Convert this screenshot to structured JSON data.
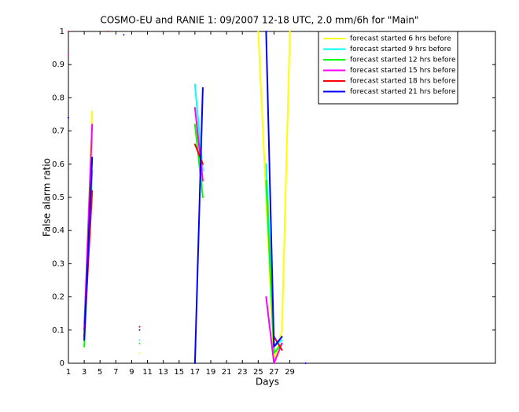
{
  "chart_data": {
    "type": "line",
    "title": "COSMO-EU and RANIE 1: 09/2007 12-18 UTC, 2.0 mm/6h for \"Main\"",
    "x_label": "Days",
    "y_label": "False alarm ratio",
    "x": [
      1,
      2,
      3,
      4,
      5,
      6,
      7,
      8,
      9,
      10,
      11,
      12,
      13,
      14,
      15,
      16,
      17,
      18,
      19,
      20,
      21,
      22,
      23,
      24,
      25,
      26,
      27,
      28,
      29,
      30,
      31
    ],
    "xlim": [
      1,
      55
    ],
    "xticks": [
      1,
      3,
      5,
      7,
      9,
      11,
      13,
      15,
      17,
      19,
      21,
      23,
      25,
      27,
      29
    ],
    "ylim": [
      0,
      1
    ],
    "yticks": [
      0,
      0.1,
      0.2,
      0.3,
      0.4,
      0.5,
      0.6,
      0.7,
      0.8,
      0.9,
      1
    ],
    "legend": "upper right",
    "series": [
      {
        "name": "forecast started 6 hrs before",
        "color": "#ffff00",
        "values": [
          null,
          null,
          0.08,
          0.76,
          null,
          null,
          null,
          null,
          null,
          0.03,
          null,
          null,
          null,
          null,
          null,
          null,
          0.72,
          0.6,
          null,
          null,
          null,
          null,
          null,
          null,
          1.0,
          0.5,
          0.0,
          0.1,
          1.0,
          null,
          null
        ]
      },
      {
        "name": "forecast started 9 hrs before",
        "color": "#00ffff",
        "values": [
          null,
          null,
          0.12,
          0.62,
          null,
          null,
          null,
          null,
          null,
          0.07,
          null,
          null,
          null,
          null,
          null,
          null,
          0.84,
          0.58,
          null,
          null,
          null,
          null,
          null,
          null,
          null,
          0.6,
          0.05,
          0.07,
          null,
          null,
          null
        ]
      },
      {
        "name": "forecast started 12 hrs before",
        "color": "#00ff00",
        "values": [
          null,
          null,
          0.05,
          0.58,
          null,
          null,
          null,
          null,
          null,
          0.06,
          null,
          null,
          null,
          null,
          null,
          null,
          0.72,
          0.5,
          null,
          null,
          null,
          null,
          null,
          null,
          null,
          0.55,
          0.03,
          0.06,
          null,
          null,
          null
        ]
      },
      {
        "name": "forecast started 15 hrs before",
        "color": "#ff00ff",
        "values": [
          0.93,
          null,
          0.1,
          0.72,
          null,
          null,
          null,
          null,
          null,
          0.11,
          null,
          null,
          null,
          null,
          null,
          null,
          0.77,
          0.55,
          null,
          null,
          null,
          null,
          null,
          null,
          null,
          0.2,
          0.0,
          0.06,
          null,
          null,
          null
        ]
      },
      {
        "name": "forecast started 18 hrs before",
        "color": "#ff0000",
        "values": [
          1.0,
          null,
          0.08,
          0.52,
          null,
          1.0,
          null,
          null,
          null,
          0.11,
          null,
          null,
          null,
          null,
          null,
          null,
          0.66,
          0.6,
          null,
          null,
          null,
          null,
          null,
          null,
          null,
          null,
          0.08,
          0.04,
          null,
          null,
          null
        ]
      },
      {
        "name": "forecast started 21 hrs before",
        "color": "#0000ff",
        "values": [
          0.74,
          null,
          0.07,
          0.62,
          null,
          null,
          null,
          0.99,
          null,
          0.1,
          null,
          null,
          null,
          null,
          null,
          null,
          0.0,
          0.83,
          null,
          null,
          null,
          null,
          null,
          null,
          null,
          1.0,
          0.05,
          0.08,
          null,
          null,
          0.0
        ]
      }
    ]
  }
}
